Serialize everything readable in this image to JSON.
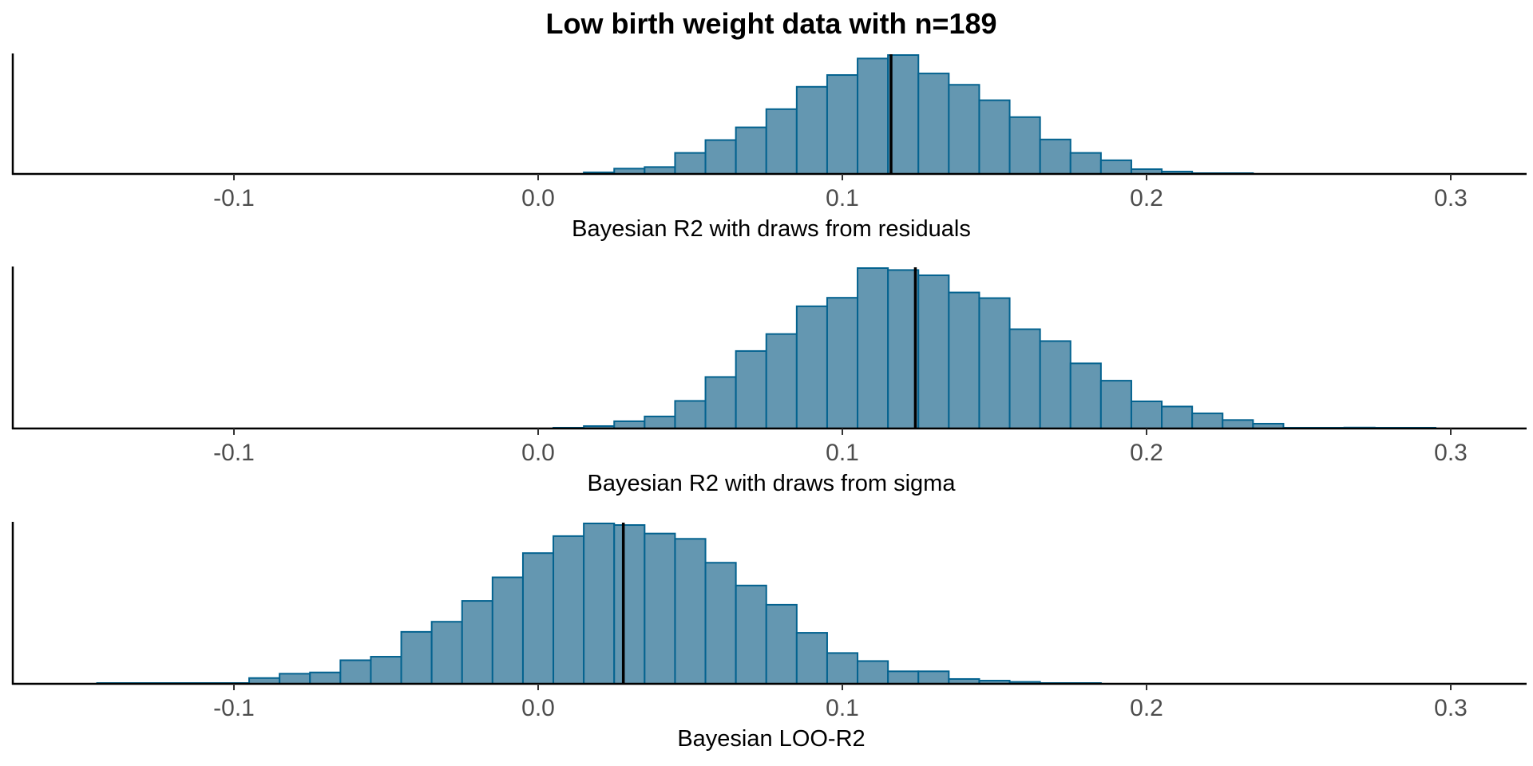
{
  "chart_data": {
    "type": "bar",
    "title": "Low birth weight data with n=189",
    "xlim": [
      -0.155,
      0.325
    ],
    "x_ticks": [
      -0.1,
      0.0,
      0.1,
      0.2,
      0.3
    ],
    "x_tick_labels": [
      "-0.1",
      "0.0",
      "0.1",
      "0.2",
      "0.3"
    ],
    "bin_width": 0.01,
    "grid": false,
    "y_axis_labels": false,
    "panels": [
      {
        "xlabel": "Bayesian R2 with draws from residuals",
        "reference_line": 0.116,
        "bin_centers": [
          0.02,
          0.03,
          0.04,
          0.05,
          0.06,
          0.07,
          0.08,
          0.09,
          0.1,
          0.11,
          0.12,
          0.13,
          0.14,
          0.15,
          0.16,
          0.17,
          0.18,
          0.19,
          0.2,
          0.21,
          0.22,
          0.23
        ],
        "relative_heights": [
          0.013,
          0.045,
          0.058,
          0.177,
          0.285,
          0.392,
          0.545,
          0.733,
          0.832,
          0.971,
          1.0,
          0.845,
          0.75,
          0.62,
          0.478,
          0.29,
          0.177,
          0.115,
          0.04,
          0.02,
          0.006,
          0.004
        ]
      },
      {
        "xlabel": "Bayesian R2 with draws from sigma",
        "reference_line": 0.124,
        "bin_centers": [
          0.01,
          0.02,
          0.03,
          0.04,
          0.05,
          0.06,
          0.07,
          0.08,
          0.09,
          0.1,
          0.11,
          0.12,
          0.13,
          0.14,
          0.15,
          0.16,
          0.17,
          0.18,
          0.19,
          0.2,
          0.21,
          0.22,
          0.23,
          0.24,
          0.25,
          0.26,
          0.27,
          0.28,
          0.29
        ],
        "relative_heights": [
          0.005,
          0.015,
          0.045,
          0.075,
          0.172,
          0.321,
          0.483,
          0.589,
          0.762,
          0.815,
          1.0,
          0.988,
          0.955,
          0.848,
          0.813,
          0.619,
          0.545,
          0.406,
          0.298,
          0.169,
          0.137,
          0.094,
          0.053,
          0.03,
          0.004,
          0.004,
          0.006,
          0.004,
          0.003
        ]
      },
      {
        "xlabel": "Bayesian LOO-R2",
        "reference_line": 0.028,
        "bin_centers": [
          -0.14,
          -0.13,
          -0.12,
          -0.11,
          -0.1,
          -0.09,
          -0.08,
          -0.07,
          -0.06,
          -0.05,
          -0.04,
          -0.03,
          -0.02,
          -0.01,
          0.0,
          0.01,
          0.02,
          0.03,
          0.04,
          0.05,
          0.06,
          0.07,
          0.08,
          0.09,
          0.1,
          0.11,
          0.12,
          0.13,
          0.14,
          0.15,
          0.16,
          0.17,
          0.18
        ],
        "relative_heights": [
          0.002,
          0.004,
          0.003,
          0.005,
          0.004,
          0.036,
          0.063,
          0.071,
          0.147,
          0.169,
          0.324,
          0.387,
          0.517,
          0.664,
          0.815,
          0.921,
          1.0,
          0.99,
          0.937,
          0.904,
          0.755,
          0.613,
          0.493,
          0.318,
          0.192,
          0.142,
          0.078,
          0.078,
          0.03,
          0.02,
          0.012,
          0.005,
          0.004
        ]
      }
    ]
  }
}
